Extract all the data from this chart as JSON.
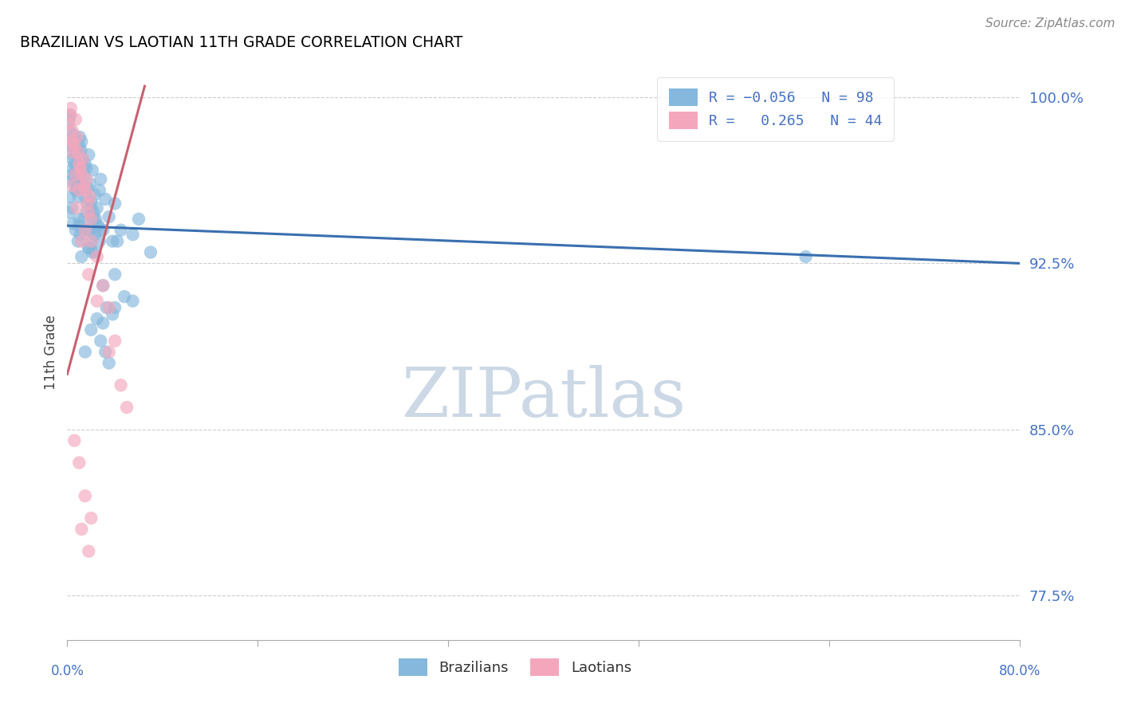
{
  "title": "BRAZILIAN VS LAOTIAN 11TH GRADE CORRELATION CHART",
  "source": "Source: ZipAtlas.com",
  "ylabel": "11th Grade",
  "xlim": [
    0.0,
    80.0
  ],
  "ylim": [
    75.5,
    101.5
  ],
  "blue_color": "#85b8dc",
  "pink_color": "#f4a7bc",
  "blue_line_color": "#3a6faf",
  "pink_line_color": "#c96070",
  "watermark_text": "ZIPatlas",
  "watermark_color": "#ccd8e5",
  "ytick_positions": [
    77.5,
    85.0,
    92.5,
    100.0
  ],
  "ytick_labels": [
    "77.5%",
    "85.0%",
    "92.5%",
    "100.0%"
  ],
  "xtick_label_left": "0.0%",
  "xtick_label_right": "80.0%",
  "blue_scatter_x": [
    0.1,
    0.15,
    0.2,
    0.25,
    0.3,
    0.35,
    0.4,
    0.45,
    0.5,
    0.55,
    0.6,
    0.65,
    0.7,
    0.75,
    0.8,
    0.85,
    0.9,
    0.95,
    1.0,
    1.05,
    1.1,
    1.15,
    1.2,
    1.3,
    1.4,
    1.5,
    1.6,
    1.7,
    1.8,
    1.9,
    2.0,
    2.1,
    2.2,
    2.3,
    2.4,
    2.5,
    2.6,
    2.7,
    2.8,
    3.0,
    3.2,
    3.5,
    3.8,
    4.0,
    4.5,
    5.5,
    6.0,
    7.0,
    0.1,
    0.2,
    0.3,
    0.4,
    0.5,
    0.6,
    0.7,
    0.8,
    0.9,
    1.0,
    1.1,
    1.2,
    1.3,
    1.4,
    1.5,
    1.6,
    1.7,
    1.8,
    1.9,
    2.0,
    2.1,
    2.2,
    2.3,
    2.5,
    2.7,
    3.0,
    3.3,
    4.0,
    4.8,
    5.5,
    1.5,
    2.0,
    2.5,
    3.0,
    3.5,
    4.0,
    2.8,
    3.2,
    3.8,
    1.0,
    1.5,
    2.0,
    1.2,
    1.8,
    2.3,
    2.6,
    4.2,
    62.0
  ],
  "blue_scatter_y": [
    97.5,
    99.0,
    98.5,
    99.2,
    97.8,
    98.0,
    96.5,
    97.2,
    96.8,
    98.3,
    97.0,
    96.2,
    95.8,
    97.5,
    96.9,
    97.3,
    96.0,
    95.5,
    97.8,
    98.2,
    96.4,
    97.6,
    98.0,
    97.2,
    96.5,
    97.0,
    96.8,
    95.9,
    97.4,
    96.1,
    95.3,
    96.7,
    94.8,
    95.6,
    94.5,
    95.0,
    94.2,
    95.8,
    96.3,
    94.0,
    95.4,
    94.6,
    93.5,
    95.2,
    94.0,
    93.8,
    94.5,
    93.0,
    94.8,
    95.5,
    96.2,
    95.0,
    94.3,
    96.5,
    94.0,
    95.8,
    93.5,
    94.2,
    93.8,
    97.0,
    96.0,
    94.5,
    95.5,
    94.8,
    95.2,
    93.2,
    94.0,
    95.0,
    93.0,
    94.5,
    93.8,
    94.2,
    93.5,
    91.5,
    90.5,
    92.0,
    91.0,
    90.8,
    88.5,
    89.5,
    90.0,
    89.8,
    88.0,
    90.5,
    89.0,
    88.5,
    90.2,
    94.5,
    94.0,
    93.5,
    92.8,
    93.2,
    93.0,
    94.0,
    93.5,
    92.8
  ],
  "pink_scatter_x": [
    0.1,
    0.2,
    0.3,
    0.4,
    0.5,
    0.6,
    0.7,
    0.8,
    0.9,
    1.0,
    1.1,
    1.2,
    1.3,
    1.4,
    1.5,
    1.6,
    1.7,
    1.8,
    1.9,
    2.0,
    0.3,
    0.5,
    0.7,
    1.0,
    1.5,
    2.0,
    2.5,
    3.0,
    3.5,
    4.0,
    0.4,
    0.8,
    1.2,
    1.8,
    2.5,
    3.5,
    4.5,
    5.0,
    0.6,
    1.0,
    1.5,
    2.0,
    1.2,
    1.8
  ],
  "pink_scatter_y": [
    98.8,
    99.2,
    99.5,
    98.5,
    98.0,
    97.8,
    99.0,
    98.2,
    97.5,
    97.0,
    96.8,
    96.5,
    97.2,
    96.0,
    95.8,
    96.3,
    95.2,
    94.8,
    95.5,
    94.5,
    98.0,
    97.5,
    96.5,
    95.8,
    94.0,
    93.5,
    92.8,
    91.5,
    90.5,
    89.0,
    96.0,
    95.0,
    93.5,
    92.0,
    90.8,
    88.5,
    87.0,
    86.0,
    84.5,
    83.5,
    82.0,
    81.0,
    80.5,
    79.5
  ],
  "blue_line_x": [
    0.0,
    80.0
  ],
  "blue_line_y": [
    94.2,
    92.5
  ],
  "pink_line_x": [
    0.0,
    6.5
  ],
  "pink_line_y": [
    87.5,
    100.5
  ]
}
